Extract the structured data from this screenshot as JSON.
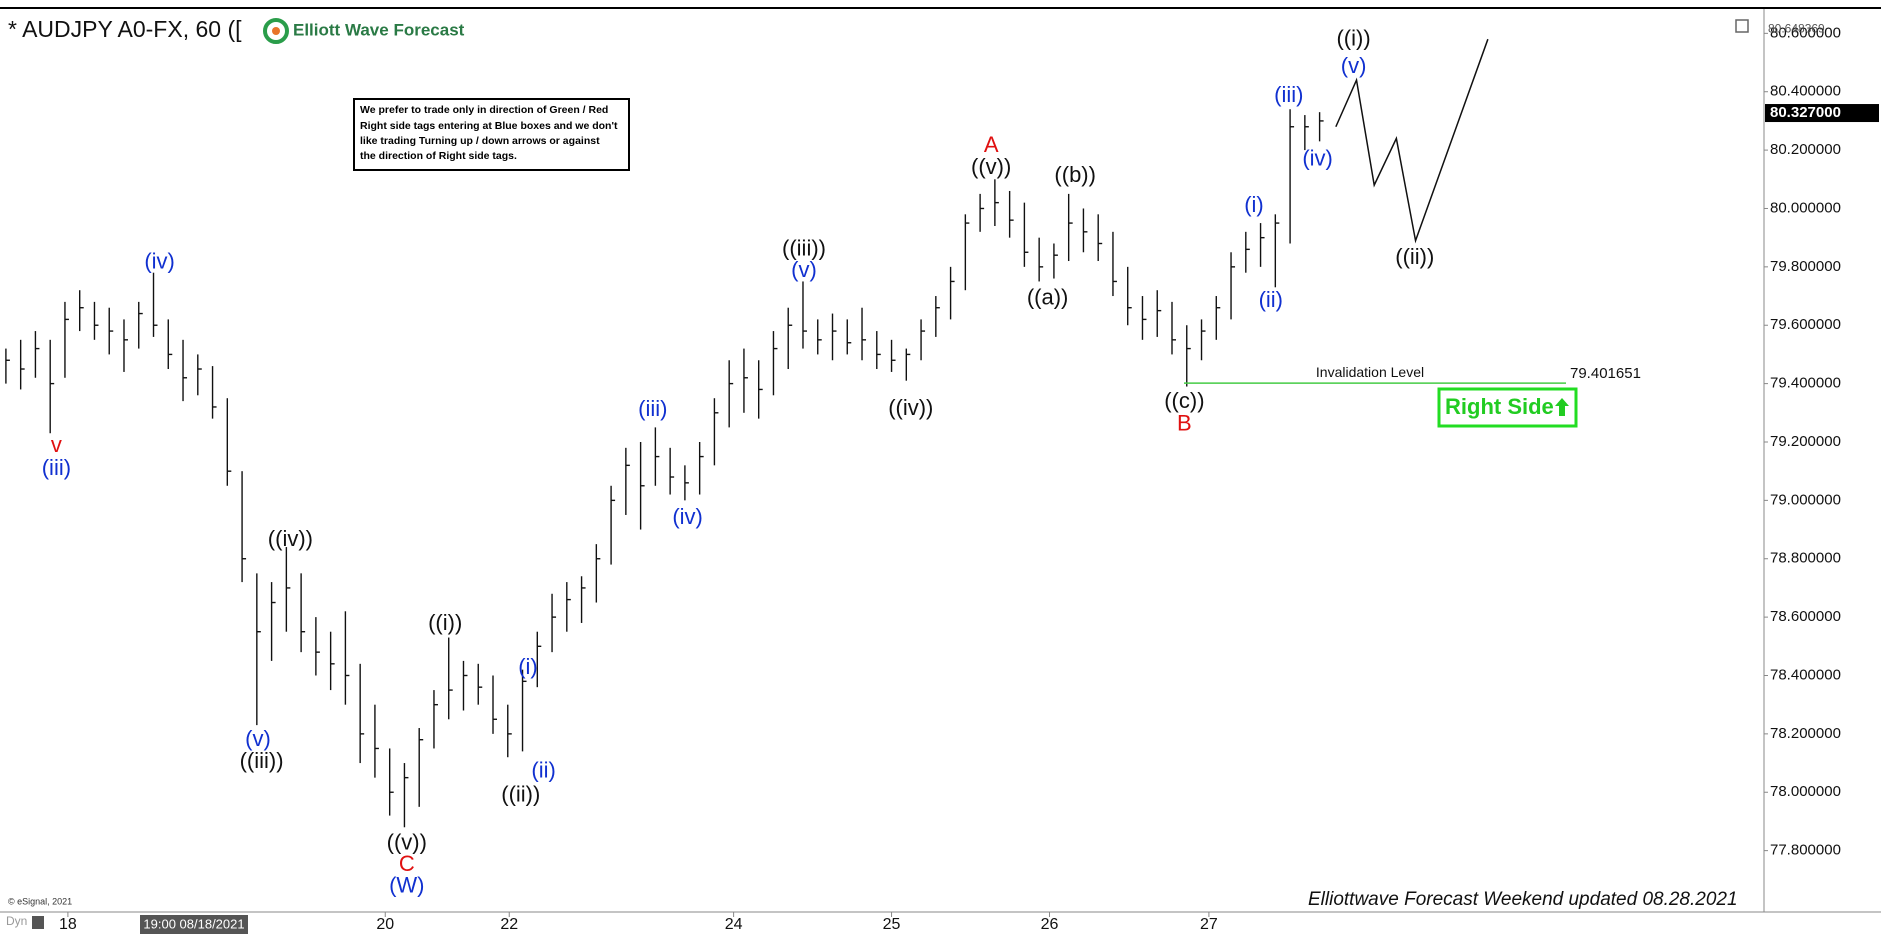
{
  "chart_data": {
    "type": "ohlc",
    "title": "* AUDJPY A0-FX, 60 ([",
    "logo": "Elliott Wave Forecast",
    "note": [
      "We prefer to trade only in direction of Green / Red",
      "Right side tags entering at Blue boxes and we don't",
      "like trading Turning up / down arrows or against",
      "the direction of Right side tags."
    ],
    "footer": "Elliottwave Forecast Weekend updated 08.28.2021",
    "copyright": "© eSignal, 2021",
    "corner_label": "Dyn",
    "cursor_label": "19:00 08/18/2021",
    "right_side_tag": "Right Side",
    "color": "#111111",
    "ylim": [
      77.6,
      80.68
    ],
    "yticks": [
      {
        "value": 77.8,
        "label": "77.800000"
      },
      {
        "value": 78.0,
        "label": "78.000000"
      },
      {
        "value": 78.2,
        "label": "78.200000"
      },
      {
        "value": 78.4,
        "label": "78.400000"
      },
      {
        "value": 78.6,
        "label": "78.600000"
      },
      {
        "value": 78.8,
        "label": "78.800000"
      },
      {
        "value": 79.0,
        "label": "79.000000"
      },
      {
        "value": 79.2,
        "label": "79.200000"
      },
      {
        "value": 79.4,
        "label": "79.400000"
      },
      {
        "value": 79.6,
        "label": "79.600000"
      },
      {
        "value": 79.8,
        "label": "79.800000"
      },
      {
        "value": 80.0,
        "label": "80.000000"
      },
      {
        "value": 80.2,
        "label": "80.200000"
      },
      {
        "value": 80.4,
        "label": "80.400000"
      },
      {
        "value": 80.6,
        "label": "80.600000"
      }
    ],
    "xlim": [
      -0.4,
      118.7
    ],
    "xticks": [
      {
        "value": 4.2,
        "label": "18"
      },
      {
        "value": 25.7,
        "label": "20"
      },
      {
        "value": 34.1,
        "label": "22"
      },
      {
        "value": 49.3,
        "label": "24"
      },
      {
        "value": 60,
        "label": "25"
      },
      {
        "value": 70.7,
        "label": "26"
      },
      {
        "value": 81.5,
        "label": "27"
      }
    ],
    "high": [
      79.52,
      79.55,
      79.58,
      79.55,
      79.68,
      79.72,
      79.68,
      79.66,
      79.62,
      79.68,
      79.78,
      79.62,
      79.55,
      79.5,
      79.46,
      79.35,
      79.1,
      78.75,
      78.72,
      78.84,
      78.75,
      78.6,
      78.55,
      78.62,
      78.44,
      78.3,
      78.15,
      78.1,
      78.22,
      78.35,
      78.53,
      78.45,
      78.44,
      78.4,
      78.3,
      78.42,
      78.55,
      78.68,
      78.72,
      78.74,
      78.85,
      79.05,
      79.18,
      79.2,
      79.25,
      79.18,
      79.12,
      79.2,
      79.35,
      79.48,
      79.52,
      79.48,
      79.58,
      79.66,
      79.75,
      79.62,
      79.64,
      79.62,
      79.66,
      79.58,
      79.55,
      79.52,
      79.62,
      79.7,
      79.8,
      79.98,
      80.05,
      80.1,
      80.06,
      80.02,
      79.9,
      79.88,
      80.05,
      80.0,
      79.98,
      79.92,
      79.8,
      79.7,
      79.72,
      79.68,
      79.6,
      79.62,
      79.7,
      79.85,
      79.92,
      79.95,
      79.98,
      80.34,
      80.32,
      80.33
    ],
    "low": [
      79.4,
      79.38,
      79.42,
      79.23,
      79.42,
      79.58,
      79.55,
      79.5,
      79.44,
      79.52,
      79.56,
      79.45,
      79.34,
      79.36,
      79.28,
      79.05,
      78.72,
      78.23,
      78.45,
      78.55,
      78.48,
      78.4,
      78.35,
      78.3,
      78.1,
      78.05,
      77.92,
      77.88,
      77.95,
      78.15,
      78.25,
      78.28,
      78.3,
      78.2,
      78.12,
      78.14,
      78.36,
      78.48,
      78.55,
      78.58,
      78.65,
      78.78,
      78.95,
      78.9,
      79.05,
      79.02,
      79.0,
      79.02,
      79.12,
      79.25,
      79.3,
      79.28,
      79.36,
      79.45,
      79.52,
      79.5,
      79.48,
      79.5,
      79.48,
      79.45,
      79.44,
      79.41,
      79.48,
      79.56,
      79.62,
      79.72,
      79.92,
      79.94,
      79.9,
      79.8,
      79.75,
      79.76,
      79.82,
      79.85,
      79.82,
      79.7,
      79.6,
      79.55,
      79.56,
      79.5,
      79.39,
      79.48,
      79.55,
      79.62,
      79.78,
      79.8,
      79.73,
      79.88,
      80.2,
      80.23
    ],
    "close": [
      79.48,
      79.45,
      79.52,
      79.4,
      79.62,
      79.66,
      79.6,
      79.58,
      79.55,
      79.64,
      79.6,
      79.5,
      79.42,
      79.45,
      79.32,
      79.1,
      78.8,
      78.55,
      78.65,
      78.7,
      78.55,
      78.48,
      78.44,
      78.4,
      78.2,
      78.15,
      78.0,
      78.05,
      78.18,
      78.3,
      78.35,
      78.4,
      78.36,
      78.25,
      78.2,
      78.38,
      78.5,
      78.6,
      78.66,
      78.7,
      78.8,
      79.0,
      79.12,
      79.05,
      79.15,
      79.08,
      79.06,
      79.15,
      79.3,
      79.4,
      79.42,
      79.38,
      79.52,
      79.6,
      79.58,
      79.55,
      79.58,
      79.54,
      79.55,
      79.5,
      79.48,
      79.5,
      79.58,
      79.66,
      79.75,
      79.95,
      80.0,
      80.02,
      79.96,
      79.85,
      79.8,
      79.84,
      79.95,
      79.92,
      79.88,
      79.75,
      79.66,
      79.62,
      79.65,
      79.55,
      79.52,
      79.58,
      79.66,
      79.8,
      79.86,
      79.9,
      79.95,
      80.28,
      80.28,
      80.3
    ],
    "last_price": {
      "value": 80.327,
      "label": "80.327000"
    },
    "top_price": 80.648369,
    "projection": {
      "color": "#111111",
      "x": [
        90.1,
        91.5,
        92.7,
        94.2,
        95.5,
        100.4
      ],
      "y": [
        80.28,
        80.44,
        80.08,
        80.24,
        79.89,
        80.58
      ]
    },
    "invalidation": {
      "label": "Invalidation Level",
      "value": 79.401651,
      "color": "#44cc44"
    },
    "annotations": [
      {
        "text": "v",
        "color": "#e01010"
      },
      {
        "text": "(iii)",
        "color": "#1030d0"
      },
      {
        "text": "(iv)",
        "color": "#1030d0"
      },
      {
        "text": "((iv))",
        "color": "#111111"
      },
      {
        "text": "(v)",
        "color": "#1030d0"
      },
      {
        "text": "((iii))",
        "color": "#111111"
      },
      {
        "text": "((v))",
        "color": "#111111"
      },
      {
        "text": "C",
        "color": "#e01010"
      },
      {
        "text": "(W)",
        "color": "#1030d0"
      },
      {
        "text": "((i))",
        "color": "#111111"
      },
      {
        "text": "(i)",
        "color": "#1030d0"
      },
      {
        "text": "(ii)",
        "color": "#1030d0"
      },
      {
        "text": "((ii))",
        "color": "#111111"
      },
      {
        "text": "(iii)",
        "color": "#1030d0"
      },
      {
        "text": "(iv)",
        "color": "#1030d0"
      },
      {
        "text": "((iii))",
        "color": "#111111"
      },
      {
        "text": "(v)",
        "color": "#1030d0"
      },
      {
        "text": "((iv))",
        "color": "#111111"
      },
      {
        "text": "A",
        "color": "#e01010"
      },
      {
        "text": "((v))",
        "color": "#111111"
      },
      {
        "text": "((a))",
        "color": "#111111"
      },
      {
        "text": "((b))",
        "color": "#111111"
      },
      {
        "text": "((c))",
        "color": "#111111"
      },
      {
        "text": "B",
        "color": "#e01010"
      },
      {
        "text": "(i)",
        "color": "#1030d0"
      },
      {
        "text": "(ii)",
        "color": "#1030d0"
      },
      {
        "text": "(iii)",
        "color": "#1030d0"
      },
      {
        "text": "(iv)",
        "color": "#1030d0"
      },
      {
        "text": "((i))",
        "color": "#111111"
      },
      {
        "text": "(v)",
        "color": "#1030d0"
      },
      {
        "text": "((ii))",
        "color": "#111111"
      }
    ]
  }
}
